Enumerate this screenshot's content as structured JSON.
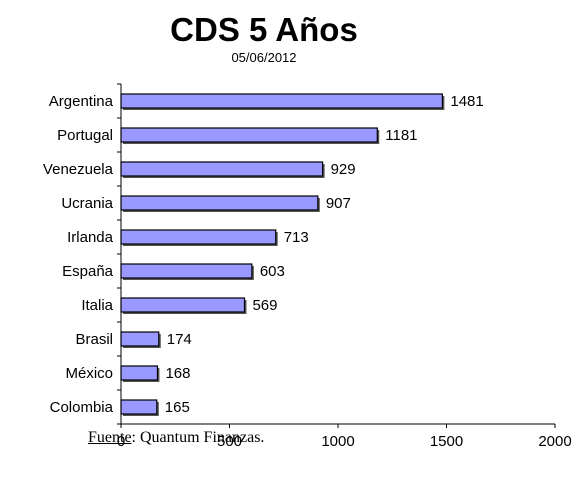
{
  "chart_data": {
    "type": "bar",
    "orientation": "horizontal",
    "title": "CDS 5 Años",
    "subtitle": "05/06/2012",
    "categories": [
      "Argentina",
      "Portugal",
      "Venezuela",
      "Ucrania",
      "Irlanda",
      "España",
      "Italia",
      "Brasil",
      "México",
      "Colombia"
    ],
    "values": [
      1481,
      1181,
      929,
      907,
      713,
      603,
      569,
      174,
      168,
      165
    ],
    "xlim": [
      0,
      2000
    ],
    "xticks": [
      0,
      500,
      1000,
      1500,
      2000
    ],
    "grid": false,
    "bar_color": "#9999ff",
    "bar_border_color": "#000000"
  },
  "source": {
    "label": "Fuente",
    "text": ": Quantum Finanzas."
  }
}
